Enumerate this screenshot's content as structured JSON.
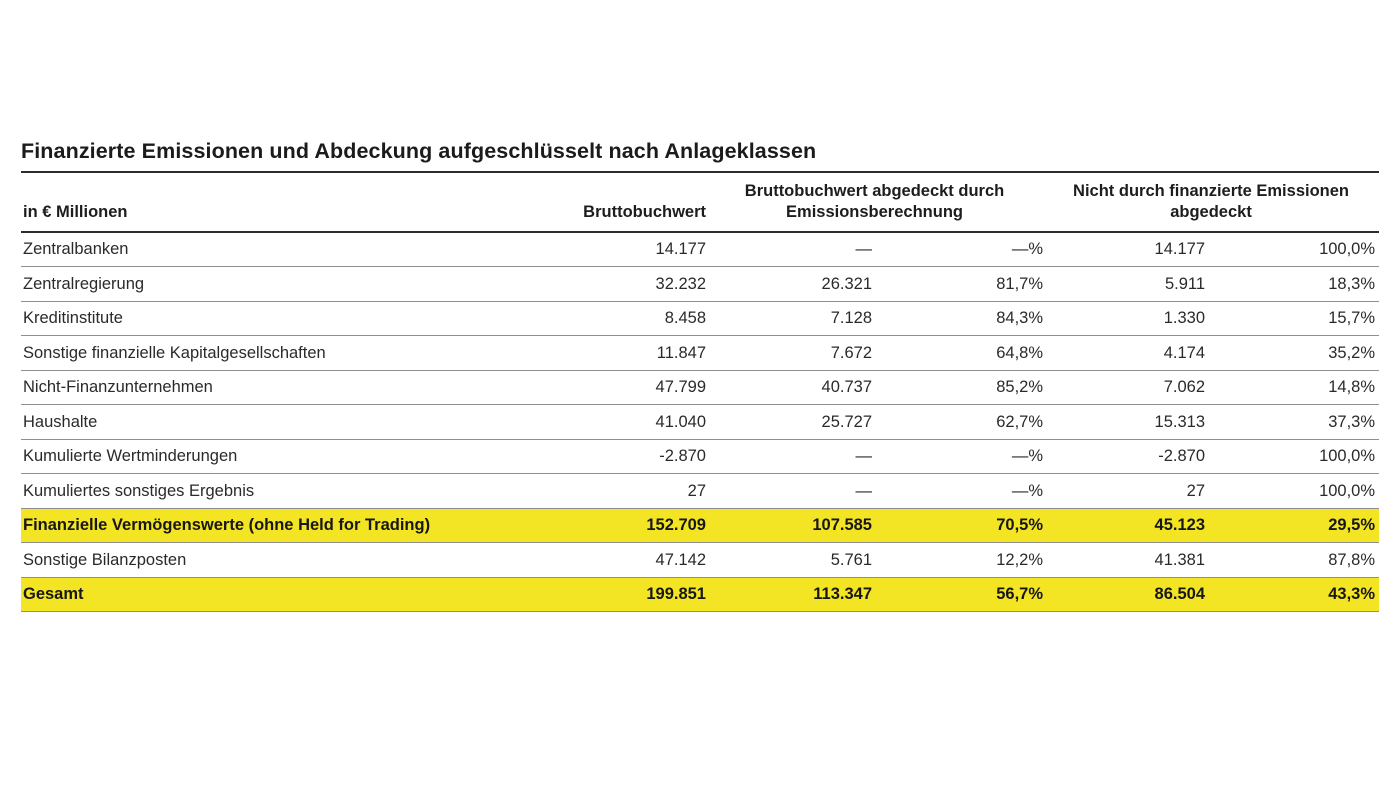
{
  "title": "Finanzierte Emissionen und Abdeckung aufgeschlüsselt nach Anlageklassen",
  "table": {
    "unit_header": "in € Millionen",
    "column_headers": {
      "gross": "Bruttobuchwert",
      "covered_group": "Bruttobuchwert abgedeckt durch Emissionsberechnung",
      "not_covered_group": "Nicht durch finanzierte Emissionen abgedeckt"
    },
    "highlight_color": "#F3E524",
    "rows": [
      {
        "label": "Zentralbanken",
        "gross": "14.177",
        "covered": "—",
        "covered_pct": "—%",
        "not_covered": "14.177",
        "not_covered_pct": "100,0%",
        "highlight": false
      },
      {
        "label": "Zentralregierung",
        "gross": "32.232",
        "covered": "26.321",
        "covered_pct": "81,7%",
        "not_covered": "5.911",
        "not_covered_pct": "18,3%",
        "highlight": false
      },
      {
        "label": "Kreditinstitute",
        "gross": "8.458",
        "covered": "7.128",
        "covered_pct": "84,3%",
        "not_covered": "1.330",
        "not_covered_pct": "15,7%",
        "highlight": false
      },
      {
        "label": "Sonstige finanzielle Kapitalgesellschaften",
        "gross": "11.847",
        "covered": "7.672",
        "covered_pct": "64,8%",
        "not_covered": "4.174",
        "not_covered_pct": "35,2%",
        "highlight": false
      },
      {
        "label": "Nicht-Finanzunternehmen",
        "gross": "47.799",
        "covered": "40.737",
        "covered_pct": "85,2%",
        "not_covered": "7.062",
        "not_covered_pct": "14,8%",
        "highlight": false
      },
      {
        "label": "Haushalte",
        "gross": "41.040",
        "covered": "25.727",
        "covered_pct": "62,7%",
        "not_covered": "15.313",
        "not_covered_pct": "37,3%",
        "highlight": false
      },
      {
        "label": "Kumulierte Wertminderungen",
        "gross": "-2.870",
        "covered": "—",
        "covered_pct": "—%",
        "not_covered": "-2.870",
        "not_covered_pct": "100,0%",
        "highlight": false
      },
      {
        "label": "Kumuliertes sonstiges Ergebnis",
        "gross": "27",
        "covered": "—",
        "covered_pct": "—%",
        "not_covered": "27",
        "not_covered_pct": "100,0%",
        "highlight": false
      },
      {
        "label": "Finanzielle Vermögenswerte (ohne Held for Trading)",
        "gross": "152.709",
        "covered": "107.585",
        "covered_pct": "70,5%",
        "not_covered": "45.123",
        "not_covered_pct": "29,5%",
        "highlight": true
      },
      {
        "label": "Sonstige Bilanzposten",
        "gross": "47.142",
        "covered": "5.761",
        "covered_pct": "12,2%",
        "not_covered": "41.381",
        "not_covered_pct": "87,8%",
        "highlight": false
      },
      {
        "label": "Gesamt",
        "gross": "199.851",
        "covered": "113.347",
        "covered_pct": "56,7%",
        "not_covered": "86.504",
        "not_covered_pct": "43,3%",
        "highlight": true
      }
    ]
  }
}
